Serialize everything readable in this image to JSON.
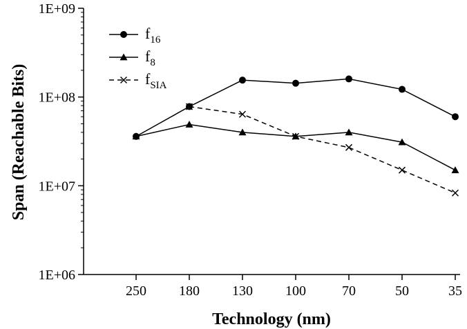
{
  "chart_data": {
    "type": "line",
    "xlabel": "Technology (nm)",
    "ylabel": "Span (Reachable Bits)",
    "categories": [
      "250",
      "180",
      "130",
      "100",
      "70",
      "50",
      "35"
    ],
    "y_scale": "log",
    "ylim": [
      1000000,
      1000000000
    ],
    "y_ticks": [
      {
        "value": 1000000,
        "label": "1E+06"
      },
      {
        "value": 10000000,
        "label": "1E+07"
      },
      {
        "value": 100000000,
        "label": "1E+08"
      },
      {
        "value": 1000000000,
        "label": "1E+09"
      }
    ],
    "grid": false,
    "legend_position": "top-left",
    "series": [
      {
        "name": "f16",
        "name_base": "f",
        "name_sub": "16",
        "marker": "circle",
        "line": "solid",
        "values": [
          36000000,
          78000000,
          155000000,
          143000000,
          160000000,
          122000000,
          60000000
        ]
      },
      {
        "name": "f8",
        "name_base": "f",
        "name_sub": "8",
        "marker": "triangle",
        "line": "solid",
        "values": [
          36000000,
          49000000,
          40000000,
          36000000,
          40000000,
          31000000,
          15000000
        ]
      },
      {
        "name": "fSIA",
        "name_base": "f",
        "name_sub": "SIA",
        "marker": "x",
        "line": "dashed",
        "values": [
          null,
          78000000,
          64000000,
          36000000,
          27000000,
          15000000,
          8300000
        ]
      }
    ]
  }
}
